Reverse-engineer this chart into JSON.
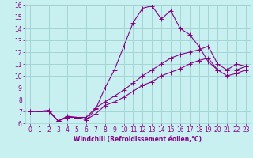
{
  "background_color": "#c8f0f0",
  "grid_color": "#a0d0d0",
  "line_color": "#880088",
  "xlabel": "Windchill (Refroidissement éolien,°C)",
  "xlim": [
    -0.5,
    23.5
  ],
  "ylim": [
    6,
    16
  ],
  "xticks": [
    0,
    1,
    2,
    3,
    4,
    5,
    6,
    7,
    8,
    9,
    10,
    11,
    12,
    13,
    14,
    15,
    16,
    17,
    18,
    19,
    20,
    21,
    22,
    23
  ],
  "yticks": [
    6,
    7,
    8,
    9,
    10,
    11,
    12,
    13,
    14,
    15,
    16
  ],
  "line1_x": [
    0,
    1,
    2,
    3,
    4,
    5,
    6,
    7,
    8,
    9,
    10,
    11,
    12,
    13,
    14,
    15,
    16,
    17,
    18,
    19,
    20,
    21,
    22,
    23
  ],
  "line1_y": [
    7.0,
    7.0,
    7.0,
    6.2,
    6.5,
    6.5,
    6.3,
    7.2,
    9.0,
    10.5,
    12.5,
    14.5,
    15.7,
    15.9,
    14.8,
    15.5,
    14.0,
    13.5,
    12.5,
    11.2,
    10.5,
    10.5,
    11.0,
    10.8
  ],
  "line2_x": [
    0,
    1,
    2,
    3,
    4,
    5,
    6,
    7,
    8,
    9,
    10,
    11,
    12,
    13,
    14,
    15,
    16,
    17,
    18,
    19,
    20,
    21,
    22,
    23
  ],
  "line2_y": [
    7.0,
    7.0,
    7.1,
    6.2,
    6.6,
    6.5,
    6.5,
    7.3,
    7.8,
    8.3,
    8.8,
    9.4,
    10.0,
    10.5,
    11.0,
    11.5,
    11.8,
    12.0,
    12.2,
    12.5,
    11.0,
    10.5,
    10.5,
    10.8
  ],
  "line3_x": [
    0,
    1,
    2,
    3,
    4,
    5,
    6,
    7,
    8,
    9,
    10,
    11,
    12,
    13,
    14,
    15,
    16,
    17,
    18,
    19,
    20,
    21,
    22,
    23
  ],
  "line3_y": [
    7.0,
    7.0,
    7.0,
    6.2,
    6.5,
    6.5,
    6.3,
    6.8,
    7.5,
    7.8,
    8.2,
    8.7,
    9.2,
    9.5,
    10.0,
    10.3,
    10.6,
    11.0,
    11.3,
    11.5,
    10.5,
    10.0,
    10.2,
    10.5
  ],
  "tick_fontsize": 5.5,
  "xlabel_fontsize": 5.5
}
